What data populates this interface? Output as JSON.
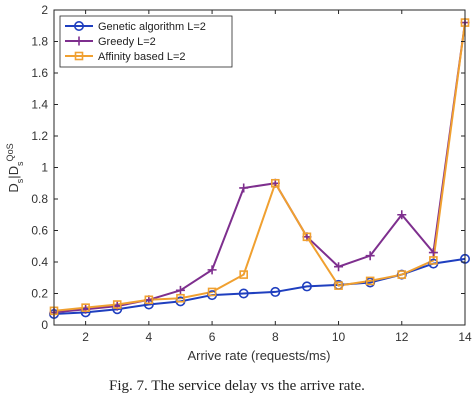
{
  "chart_data": {
    "type": "line",
    "title": "",
    "xlabel": "Arrive rate (requests/ms)",
    "ylabel_main": "D",
    "ylabel_sub1": "s",
    "ylabel_sep": "|D",
    "ylabel_sub2": "s",
    "ylabel_sup": "QoS",
    "xlim": [
      1,
      14
    ],
    "ylim": [
      0,
      2
    ],
    "xticks": [
      "2",
      "4",
      "6",
      "8",
      "10",
      "12",
      "14"
    ],
    "yticks": [
      "0",
      "0.2",
      "0.4",
      "0.6",
      "0.8",
      "1",
      "1.2",
      "1.4",
      "1.6",
      "1.8",
      "2"
    ],
    "x": [
      1,
      2,
      3,
      4,
      5,
      6,
      7,
      8,
      9,
      10,
      11,
      12,
      13,
      14
    ],
    "legend_position": "top-left",
    "series": [
      {
        "name": "Genetic algorithm L=2",
        "color": "#1f3fbf",
        "marker": "circle",
        "values": [
          0.07,
          0.08,
          0.1,
          0.13,
          0.15,
          0.19,
          0.2,
          0.21,
          0.245,
          0.255,
          0.27,
          0.32,
          0.39,
          0.42
        ]
      },
      {
        "name": "Greedy L=2",
        "color": "#7e2f8e",
        "marker": "plus",
        "values": [
          0.08,
          0.1,
          0.12,
          0.16,
          0.22,
          0.35,
          0.87,
          0.9,
          0.56,
          0.37,
          0.44,
          0.7,
          0.46,
          1.92
        ]
      },
      {
        "name": "Affinity based L=2",
        "color": "#f0a030",
        "marker": "square",
        "values": [
          0.09,
          0.11,
          0.13,
          0.16,
          0.17,
          0.21,
          0.32,
          0.9,
          0.56,
          0.25,
          0.28,
          0.32,
          0.41,
          1.92
        ]
      }
    ]
  },
  "caption": "Fig. 7. The service delay vs the arrive rate."
}
